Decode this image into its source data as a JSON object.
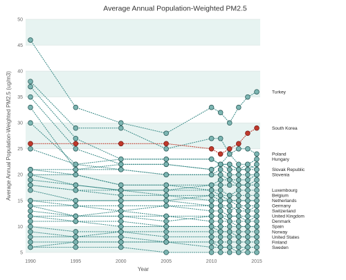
{
  "chart_data": {
    "type": "line",
    "title": "Average Annual Population-Weighted PM2.5",
    "xlabel": "Year",
    "ylabel": "Average Annual Population-Weighted PM2.5 (ug/m3)",
    "x": [
      1990,
      1995,
      2000,
      2005,
      2010,
      2011,
      2012,
      2013,
      2014,
      2015
    ],
    "x_ticks": [
      1990,
      1995,
      2000,
      2005,
      2010,
      2015
    ],
    "y_ticks": [
      5,
      10,
      15,
      20,
      25,
      30,
      35,
      40,
      45,
      50
    ],
    "xlim": [
      1990,
      2015
    ],
    "ylim": [
      5,
      50
    ],
    "grid": true,
    "alternating_bands": true,
    "colors": {
      "line": "#3d8c89",
      "marker_fill": "#7cb5b2",
      "marker_stroke": "#2a5a58",
      "highlight_stroke": "#7a1c19",
      "band": "#e7f3f1",
      "grid": "#dce5e4"
    },
    "series": [
      {
        "name": "Turkey",
        "values": [
          46,
          33,
          30,
          28,
          33,
          32,
          30,
          33,
          35,
          36
        ]
      },
      {
        "name": "South Korea",
        "color": "#c0392b",
        "values": [
          26,
          26,
          26,
          26,
          25,
          24,
          25,
          26,
          28,
          29
        ]
      },
      {
        "name": "Poland",
        "values": [
          38,
          29,
          29,
          25,
          27,
          27,
          24,
          25,
          25,
          24
        ]
      },
      {
        "name": "Hungary",
        "values": [
          37,
          27,
          23,
          23,
          23,
          22,
          24,
          22,
          22,
          23
        ]
      },
      {
        "name": "Slovak Republic",
        "values": [
          35,
          25,
          22,
          22,
          21,
          22,
          22,
          21,
          21,
          21
        ]
      },
      {
        "name": "Slovenia",
        "values": [
          30,
          22,
          21,
          20,
          20,
          21,
          20,
          20,
          20,
          20
        ]
      },
      {
        "name": "Luxembourg",
        "values": [
          20,
          18,
          17,
          17,
          17,
          17,
          16,
          17,
          17,
          17
        ]
      },
      {
        "name": "Belgium",
        "values": [
          21,
          20,
          18,
          18,
          17,
          16,
          16,
          16,
          16,
          16
        ]
      },
      {
        "name": "Netherlands",
        "values": [
          19,
          18,
          17,
          16,
          16,
          16,
          15,
          15,
          15,
          15
        ]
      },
      {
        "name": "Germany",
        "values": [
          18,
          17,
          16,
          16,
          15,
          15,
          15,
          14,
          14,
          14
        ]
      },
      {
        "name": "Switzerland",
        "values": [
          17,
          15,
          15,
          15,
          14,
          14,
          14,
          13,
          13,
          13
        ]
      },
      {
        "name": "United Kingdom",
        "values": [
          15,
          14,
          14,
          14,
          13,
          13,
          12,
          12,
          12,
          12
        ]
      },
      {
        "name": "Denmark",
        "values": [
          14,
          14,
          13,
          12,
          12,
          12,
          11,
          11,
          11,
          11
        ]
      },
      {
        "name": "Spain",
        "values": [
          13,
          12,
          12,
          12,
          11,
          11,
          11,
          10,
          10,
          10
        ]
      },
      {
        "name": "Norway",
        "values": [
          10,
          9,
          9,
          9,
          9,
          9,
          9,
          9,
          9,
          9
        ]
      },
      {
        "name": "United States",
        "values": [
          12,
          11,
          11,
          10,
          10,
          9,
          9,
          8,
          8,
          8
        ]
      },
      {
        "name": "Finland",
        "values": [
          8,
          8,
          8,
          7,
          7,
          7,
          7,
          7,
          7,
          7
        ]
      },
      {
        "name": "Sweden",
        "values": [
          7,
          7,
          7,
          7,
          6,
          6,
          6,
          6,
          6,
          6
        ]
      },
      {
        "values": [
          33,
          21,
          22,
          22,
          21,
          22,
          21,
          21,
          22,
          21
        ]
      },
      {
        "values": [
          25,
          22,
          23,
          23,
          23,
          22,
          22,
          21,
          21,
          22
        ]
      },
      {
        "values": [
          21,
          21,
          21,
          20,
          20,
          20,
          19,
          19,
          19,
          20
        ]
      },
      {
        "values": [
          20,
          20,
          18,
          18,
          18,
          19,
          19,
          18,
          18,
          19
        ]
      },
      {
        "values": [
          18,
          17,
          17,
          17,
          18,
          18,
          18,
          18,
          18,
          18
        ]
      },
      {
        "values": [
          15,
          15,
          15,
          15,
          16,
          15,
          15,
          15,
          15,
          15
        ]
      },
      {
        "values": [
          14,
          12,
          13,
          14,
          14,
          14,
          13,
          14,
          13,
          14
        ]
      },
      {
        "values": [
          12,
          12,
          12,
          11,
          12,
          12,
          12,
          12,
          11,
          12
        ]
      },
      {
        "values": [
          11,
          11,
          10,
          10,
          10,
          10,
          10,
          10,
          10,
          10
        ]
      },
      {
        "values": [
          9,
          8,
          9,
          8,
          8,
          8,
          8,
          8,
          8,
          8
        ]
      },
      {
        "values": [
          6,
          7,
          7,
          7,
          7,
          6,
          6,
          5,
          6,
          6
        ]
      },
      {
        "values": [
          6,
          6,
          6,
          5,
          5,
          5,
          5,
          5,
          5,
          5
        ]
      }
    ]
  }
}
